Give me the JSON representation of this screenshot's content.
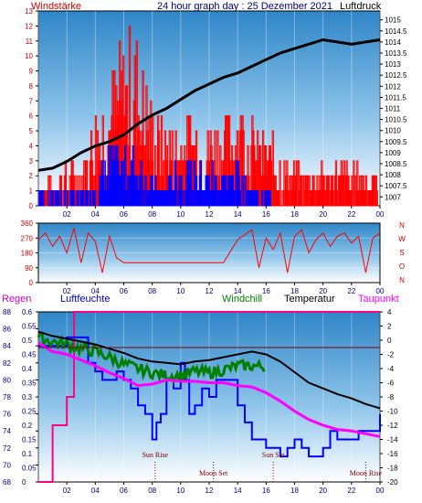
{
  "header": {
    "left_label": "Windstärke",
    "title": "24 hour graph day : 25 Dezember 2021",
    "right_label": "Luftdruck"
  },
  "panel2": {
    "directions": [
      "N",
      "W",
      "S",
      "O",
      "N"
    ],
    "ticks": [
      "360",
      "270",
      "180",
      "90",
      "0"
    ]
  },
  "panel3": {
    "labels": {
      "regen": "Regen",
      "luftfeuchte": "Luftfeuchte",
      "windchill": "Windchill",
      "temperatur": "Temperatur",
      "taupunkt": "Taupunkt"
    },
    "annotations": {
      "sun_rise": "Sun Rise",
      "sun_set": "Sun Set",
      "moon_set": "Moon Set",
      "moon_rise": "Moon Rise"
    }
  },
  "colors": {
    "wind": "#ff0000",
    "gust": "#0000ff",
    "pressure": "#000000",
    "humidity": "#0000ff",
    "windchill": "#008000",
    "temperature": "#000000",
    "dewpoint": "#ff00ff",
    "rain": "#ff0080",
    "axis_left": "#cc0000",
    "axis_right_labels": "#000000"
  },
  "chart_data": [
    {
      "type": "bar",
      "name_key": "wind_pressure",
      "x_ticks": [
        "02",
        "04",
        "06",
        "08",
        "10",
        "12",
        "14",
        "16",
        "18",
        "20",
        "22",
        "00"
      ],
      "ylim_left": [
        0,
        13
      ],
      "y_ticks_left": [
        "0",
        "1",
        "2",
        "3",
        "4",
        "5",
        "6",
        "7",
        "8",
        "9",
        "10",
        "11",
        "12",
        "13"
      ],
      "ylim_right": [
        1006.6,
        1015.4
      ],
      "y_ticks_right": [
        "1007",
        "1007.5",
        "1008",
        "1008.5",
        "1009",
        "1009.5",
        "1010",
        "1010.5",
        "1011",
        "1011.5",
        "1012",
        "1012.5",
        "1013",
        "1013.5",
        "1014",
        "1014.5",
        "1015"
      ],
      "pressure": {
        "x": [
          0,
          1,
          2,
          3,
          4,
          5,
          6,
          7,
          8,
          9,
          10,
          11,
          12,
          13,
          14,
          15,
          16,
          17,
          18,
          19,
          20,
          21,
          22,
          23,
          24
        ],
        "y": [
          1008.2,
          1008.3,
          1008.6,
          1009.0,
          1009.3,
          1009.5,
          1009.8,
          1010.3,
          1010.7,
          1011.0,
          1011.4,
          1011.8,
          1012.1,
          1012.4,
          1012.6,
          1012.9,
          1013.2,
          1013.5,
          1013.7,
          1013.9,
          1014.1,
          1014.0,
          1013.9,
          1014.0,
          1014.1
        ]
      },
      "wind_max": {
        "x": [
          0,
          1,
          2,
          3,
          4,
          5,
          6,
          7,
          8,
          9,
          10,
          11,
          12,
          13,
          14,
          15,
          16,
          17,
          18,
          19,
          20,
          21,
          22,
          23,
          24
        ],
        "y": [
          2,
          2,
          3,
          3,
          7,
          9,
          12,
          12,
          7,
          6,
          6,
          7,
          6,
          6,
          8,
          6,
          5,
          4,
          3,
          3,
          3,
          3,
          3,
          3,
          2
        ]
      },
      "gust": {
        "x": [
          0,
          1,
          2,
          3,
          4,
          5,
          6,
          7,
          8,
          9,
          10,
          11,
          12,
          13,
          14,
          15,
          16,
          17,
          18,
          19,
          20,
          21,
          22,
          23,
          24
        ],
        "y": [
          1,
          1,
          1,
          1,
          2,
          4,
          4,
          4,
          2,
          2,
          3,
          3,
          3,
          3,
          3,
          2,
          1,
          0,
          0,
          0,
          0,
          0,
          0,
          0,
          0
        ]
      }
    },
    {
      "type": "line",
      "name_key": "wind_direction",
      "ylim": [
        0,
        360
      ],
      "y_ticks": [
        "0",
        "90",
        "180",
        "270",
        "360"
      ],
      "x_ticks": [
        "02",
        "04",
        "06",
        "08",
        "10",
        "12",
        "14",
        "16",
        "18",
        "20",
        "22",
        "00"
      ],
      "x": [
        0,
        0.5,
        1,
        1.5,
        2,
        2.5,
        3,
        3.5,
        4,
        4.5,
        5,
        5.5,
        6,
        7,
        8,
        9,
        10,
        11,
        12,
        13,
        14,
        15,
        15.5,
        16,
        16.5,
        17,
        17.5,
        18,
        18.5,
        19,
        19.5,
        20,
        20.5,
        21,
        21.5,
        22,
        22.5,
        23,
        23.5,
        24
      ],
      "y": [
        260,
        300,
        220,
        280,
        180,
        330,
        120,
        300,
        250,
        60,
        280,
        150,
        120,
        120,
        120,
        120,
        120,
        120,
        120,
        120,
        260,
        320,
        90,
        270,
        200,
        300,
        60,
        280,
        320,
        180,
        260,
        300,
        220,
        280,
        300,
        240,
        280,
        60,
        270,
        300
      ]
    },
    {
      "type": "line",
      "name_key": "climate",
      "x_ticks": [
        "02",
        "04",
        "06",
        "08",
        "10",
        "12",
        "14",
        "16",
        "18",
        "20",
        "22",
        "00"
      ],
      "ylim_rain": [
        0,
        0.6
      ],
      "y_ticks_rain": [
        "0",
        "0.05",
        "0.1",
        "0.15",
        "0.2",
        "0.25",
        "0.3",
        "0.35",
        "0.4",
        "0.45",
        "0.5",
        "0.55",
        "0.6"
      ],
      "ylim_humidity": [
        68,
        88
      ],
      "y_ticks_humidity": [
        "68",
        "70",
        "72",
        "74",
        "76",
        "78",
        "80",
        "82",
        "84",
        "86",
        "88"
      ],
      "ylim_temp": [
        -20,
        4
      ],
      "y_ticks_temp": [
        "4",
        "2",
        "0",
        "-2",
        "-4",
        "-6",
        "-8",
        "-10",
        "-12",
        "-14",
        "-16",
        "-18",
        "-20"
      ],
      "rain": {
        "x": [
          0,
          1,
          1,
          2,
          2,
          2.5,
          2.5,
          24
        ],
        "y": [
          0,
          0,
          0.2,
          0.2,
          0.3,
          0.3,
          0.6,
          0.6
        ]
      },
      "temperature": {
        "x": [
          0,
          1,
          2,
          3,
          4,
          5,
          6,
          7,
          8,
          9,
          10,
          11,
          12,
          13,
          14,
          15,
          16,
          17,
          18,
          19,
          20,
          21,
          22,
          23,
          24
        ],
        "y": [
          1.2,
          0.6,
          0.2,
          -0.2,
          -0.6,
          -1.2,
          -1.8,
          -2.6,
          -3.0,
          -3.2,
          -3.4,
          -3.0,
          -2.8,
          -2.4,
          -2.0,
          -1.6,
          -2.0,
          -3.0,
          -4.5,
          -6.0,
          -6.8,
          -7.6,
          -8.2,
          -9.0,
          -9.6
        ]
      },
      "windchill": {
        "x": [
          0,
          1,
          2,
          3,
          4,
          5,
          6,
          7,
          8,
          9,
          10,
          11,
          12,
          13,
          14,
          15,
          16
        ],
        "y": [
          0.4,
          -0.2,
          -0.6,
          -1.2,
          -1.6,
          -2.4,
          -3.4,
          -4.0,
          -4.6,
          -5.0,
          -5.0,
          -4.4,
          -4.6,
          -4.2,
          -3.6,
          -3.6,
          -3.8
        ]
      },
      "dewpoint": {
        "x": [
          0,
          1,
          2,
          3,
          4,
          5,
          6,
          7,
          8,
          9,
          10,
          11,
          12,
          13,
          14,
          15,
          16,
          17,
          18,
          19,
          20,
          21,
          22,
          23,
          24
        ],
        "y": [
          -0.4,
          -1.6,
          -2.0,
          -2.8,
          -3.6,
          -4.6,
          -5.4,
          -6.4,
          -6.2,
          -5.6,
          -5.8,
          -5.8,
          -6.0,
          -6.0,
          -6.4,
          -6.6,
          -7.4,
          -8.6,
          -10.0,
          -11.2,
          -12.0,
          -12.6,
          -12.8,
          -13.2,
          -13.6
        ]
      },
      "humidity": {
        "x": [
          0,
          1,
          2,
          3,
          3.5,
          4,
          4.5,
          5,
          5.5,
          6,
          6.5,
          7,
          7.5,
          8,
          8.3,
          8.6,
          9,
          9.5,
          10,
          10.3,
          10.6,
          11,
          11.5,
          12,
          12.5,
          13,
          13.5,
          14,
          14.5,
          15,
          16,
          16.5,
          17,
          17.5,
          18,
          18.5,
          19,
          19.5,
          20,
          20.5,
          21,
          21.5,
          22,
          22.5,
          23,
          23.5,
          24
        ],
        "y": [
          84,
          84,
          85,
          85,
          82,
          81,
          80,
          80,
          81,
          80,
          79,
          77,
          76,
          73,
          75,
          76,
          80,
          79,
          82,
          80,
          76,
          77,
          79,
          78,
          80,
          80,
          80,
          77,
          75,
          73,
          72,
          72,
          71,
          72,
          73,
          72,
          71,
          71,
          72,
          74,
          73,
          73,
          73,
          74,
          74,
          74,
          76
        ]
      },
      "annotations": [
        {
          "label_key": "sun_rise",
          "x": 8.2
        },
        {
          "label_key": "moon_set",
          "x": 12.3
        },
        {
          "label_key": "sun_set",
          "x": 16.5
        },
        {
          "label_key": "moon_rise",
          "x": 23.0
        }
      ]
    }
  ]
}
